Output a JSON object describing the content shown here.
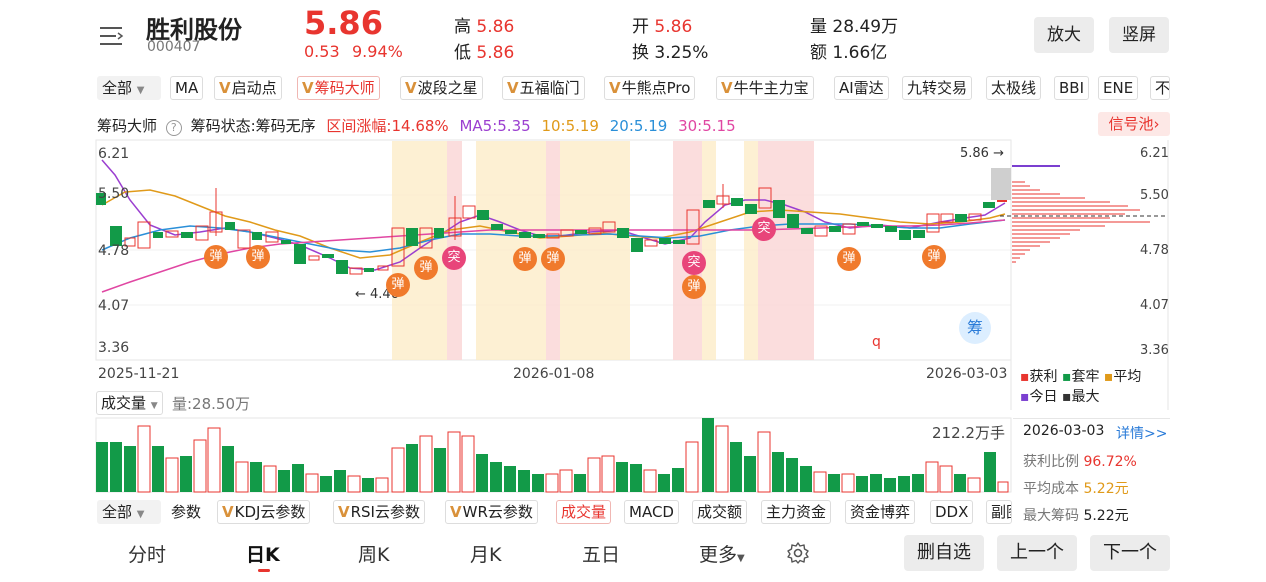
{
  "header": {
    "name": "胜利股份",
    "code": "000407",
    "price": "5.86",
    "change": "0.53",
    "change_pct": "9.94%",
    "high_label": "高",
    "high": "5.86",
    "low_label": "低",
    "low": "5.86",
    "open_label": "开",
    "open": "5.86",
    "turnover_label": "换",
    "turnover": "3.25%",
    "volume_label": "量",
    "volume": "28.49万",
    "amount_label": "额",
    "amount": "1.66亿",
    "zoom_btn": "放大",
    "portrait_btn": "竖屏"
  },
  "indicator_bar": {
    "all_label": "全部",
    "items": [
      "MA",
      "启动点",
      "筹码大师",
      "波段之星",
      "五福临门",
      "牛熊点Pro",
      "牛牛主力宝",
      "AI雷达",
      "九转交易",
      "太极线",
      "BBI",
      "ENE",
      "不"
    ]
  },
  "chip_info": {
    "title": "筹码大师",
    "status": "筹码状态:筹码无序",
    "range": "区间涨幅:14.68%",
    "ma5": "MA5:5.35",
    "ma10": "10:5.19",
    "ma20": "20:5.19",
    "ma30": "30:5.15",
    "signal_pool": "信号池"
  },
  "price_axis": [
    "6.21",
    "5.50",
    "4.78",
    "4.07",
    "3.36"
  ],
  "right_axis": [
    "6.21",
    "5.50",
    "4.78",
    "4.07",
    "3.36"
  ],
  "annotations": {
    "last_price": "5.86",
    "low_marker": "4.46",
    "chip_btn": "筹",
    "q_marker": "q"
  },
  "dates": [
    "2025-11-21",
    "2026-01-08",
    "2026-03-03"
  ],
  "legend": {
    "profit": "获利",
    "trapped": "套牢",
    "average": "平均",
    "today": "今日",
    "max": "最大"
  },
  "volume_header": {
    "select_label": "成交量",
    "value": "量:28.50万",
    "max_label": "212.2万手"
  },
  "detail": {
    "date": "2026-03-03",
    "more": "详情>>",
    "profit_ratio_label": "获利比例",
    "profit_ratio": "96.72%",
    "avg_cost_label": "平均成本",
    "avg_cost": "5.22元",
    "max_chip_label": "最大筹码",
    "max_chip": "5.22元"
  },
  "sub_indicator_bar": {
    "all_label": "全部",
    "items": [
      "参数",
      "KDJ云参数",
      "RSI云参数",
      "WR云参数",
      "成交量",
      "MACD",
      "成交额",
      "主力资金",
      "资金博弈",
      "DDX",
      "副图"
    ]
  },
  "period_tabs": [
    "分时",
    "日K",
    "周K",
    "月K",
    "五日",
    "更多"
  ],
  "actions": {
    "remove": "删自选",
    "prev": "上一个",
    "next": "下一个"
  },
  "signals": {
    "bounce": "弹",
    "breakout": "突"
  }
}
